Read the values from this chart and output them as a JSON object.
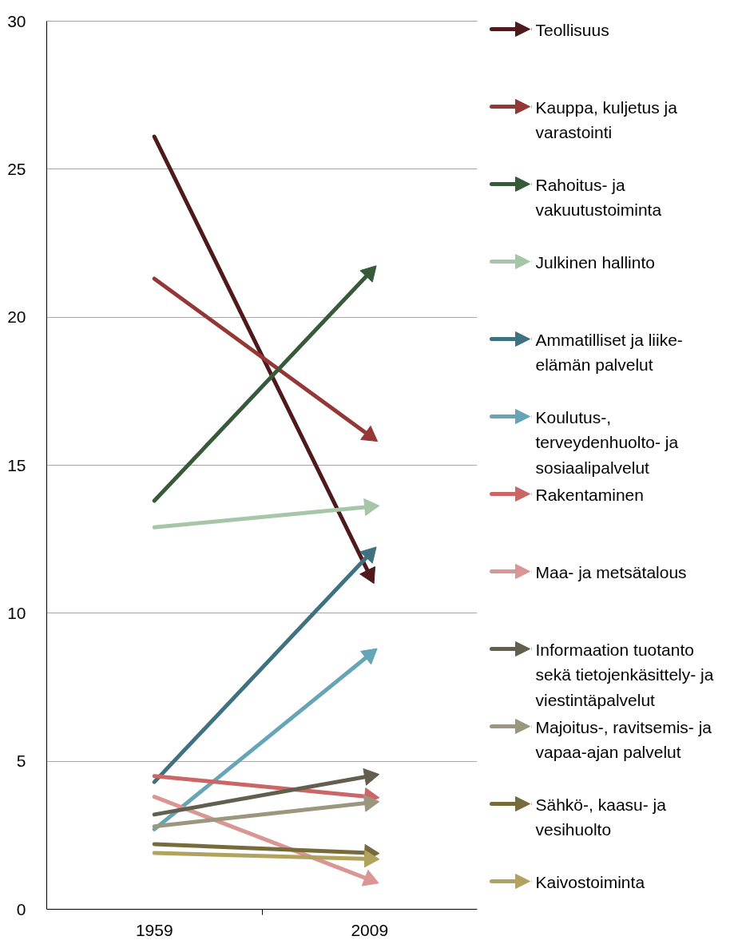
{
  "chart_data": {
    "type": "line",
    "categories": [
      "1959",
      "2009"
    ],
    "ylim": [
      0,
      30
    ],
    "yticks": [
      0,
      5,
      10,
      15,
      20,
      25,
      30
    ],
    "grid": "y",
    "legend": "right",
    "marker": "triangle",
    "series": [
      {
        "name": "Teollisuus",
        "color": "#4f1a1c",
        "values": [
          26.1,
          11.3
        ]
      },
      {
        "name": "Kauppa, kuljetus ja varastointi",
        "color": "#953735",
        "values": [
          21.3,
          16.0
        ]
      },
      {
        "name": "Rahoitus- ja vakuutustoiminta",
        "color": "#375a3a",
        "values": [
          13.8,
          21.5
        ]
      },
      {
        "name": "Julkinen hallinto",
        "color": "#a7c5a7",
        "values": [
          12.9,
          13.6
        ]
      },
      {
        "name": "Ammatilliset ja liike-elämän palvelut",
        "color": "#3e7280",
        "values": [
          4.3,
          12.0
        ]
      },
      {
        "name": "Koulutus-, terveydenhuolto- ja sosiaalipalvelut",
        "color": "#66a5b6",
        "values": [
          2.7,
          8.6
        ]
      },
      {
        "name": "Rakentaminen",
        "color": "#cc6666",
        "values": [
          4.5,
          3.8
        ]
      },
      {
        "name": "Maa- ja metsätalous",
        "color": "#da9694",
        "values": [
          3.8,
          1.0
        ]
      },
      {
        "name": "Informaation tuotanto sekä tietojenkäsittely- ja viestintäpalvelut",
        "color": "#625f4f",
        "values": [
          3.2,
          4.5
        ]
      },
      {
        "name": "Majoitus-, ravitsemis- ja vapaa-ajan palvelut",
        "color": "#9b977f",
        "values": [
          2.8,
          3.6
        ]
      },
      {
        "name": "Sähkö-, kaasu- ja vesihuolto",
        "color": "#776b3b",
        "values": [
          2.2,
          1.9
        ]
      },
      {
        "name": "Kaivostoiminta",
        "color": "#b1a35d",
        "values": [
          1.9,
          1.7
        ]
      }
    ]
  }
}
